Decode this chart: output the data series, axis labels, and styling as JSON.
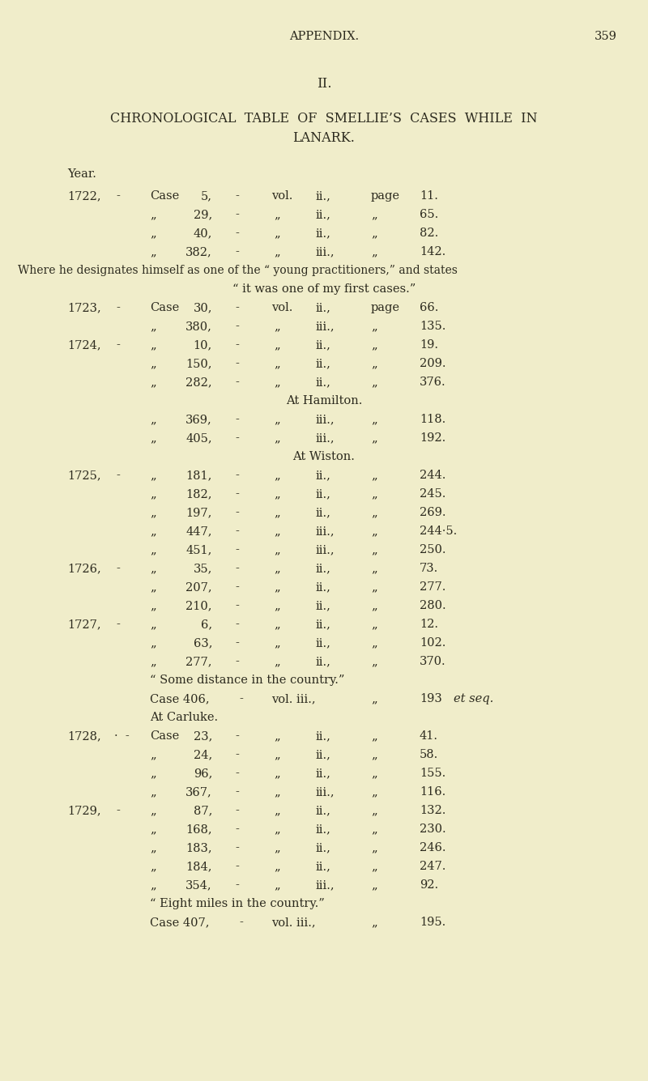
{
  "bg_color": "#f0edca",
  "text_color": "#2c2a1e",
  "lines": [
    {
      "t": "header"
    },
    {
      "t": "blank"
    },
    {
      "t": "section_ii"
    },
    {
      "t": "blank"
    },
    {
      "t": "title1"
    },
    {
      "t": "title2"
    },
    {
      "t": "blank"
    },
    {
      "t": "year_label"
    },
    {
      "t": "entry_year",
      "year": "1722,",
      "cw": "Case",
      "cn": "5,",
      "vol": "vol.",
      "vn": "ii.,",
      "pg": "page",
      "pn": "11."
    },
    {
      "t": "entry_cont",
      "cw": "„",
      "cn": "29,",
      "vn": "ii.,",
      "pn": "65."
    },
    {
      "t": "entry_cont",
      "cw": "„",
      "cn": "40,",
      "vn": "ii.,",
      "pn": "82."
    },
    {
      "t": "entry_cont",
      "cw": "„",
      "cn": "382,",
      "vn": "iii.,",
      "pn": "142."
    },
    {
      "t": "note_full",
      "text": "Where he designates himself as one of the “ young practitioners,” and states"
    },
    {
      "t": "note_center",
      "text": "“ it was one of my first cases.”"
    },
    {
      "t": "entry_year",
      "year": "1723,",
      "cw": "Case",
      "cn": "30,",
      "vol": "vol.",
      "vn": "ii.,",
      "pg": "page",
      "pn": "66."
    },
    {
      "t": "entry_cont",
      "cw": "„",
      "cn": "380,",
      "vn": "iii.,",
      "pn": "135."
    },
    {
      "t": "entry_year",
      "year": "1724,",
      "cw": "„",
      "cn": "10,",
      "vn": "ii.,",
      "pn": "19."
    },
    {
      "t": "entry_cont",
      "cw": "„",
      "cn": "150,",
      "vn": "ii.,",
      "pn": "209."
    },
    {
      "t": "entry_cont",
      "cw": "„",
      "cn": "282,",
      "vn": "ii.,",
      "pn": "376."
    },
    {
      "t": "note_center",
      "text": "At Hamilton."
    },
    {
      "t": "entry_cont",
      "cw": "„",
      "cn": "369,",
      "vn": "iii.,",
      "pn": "118."
    },
    {
      "t": "entry_cont",
      "cw": "„",
      "cn": "405,",
      "vn": "iii.,",
      "pn": "192."
    },
    {
      "t": "note_center",
      "text": "At Wiston."
    },
    {
      "t": "entry_year",
      "year": "1725,",
      "cw": "„",
      "cn": "181,",
      "vn": "ii.,",
      "pn": "244."
    },
    {
      "t": "entry_cont",
      "cw": "„",
      "cn": "182,",
      "vn": "ii.,",
      "pn": "245."
    },
    {
      "t": "entry_cont",
      "cw": "„",
      "cn": "197,",
      "vn": "ii.,",
      "pn": "269."
    },
    {
      "t": "entry_cont",
      "cw": "„",
      "cn": "447,",
      "vn": "iii.,",
      "pn": "244·5."
    },
    {
      "t": "entry_cont",
      "cw": "„",
      "cn": "451,",
      "vn": "iii.,",
      "pn": "250."
    },
    {
      "t": "entry_year",
      "year": "1726,",
      "cw": "„",
      "cn": "35,",
      "vn": "ii.,",
      "pn": "73."
    },
    {
      "t": "entry_cont",
      "cw": "„",
      "cn": "207,",
      "vn": "ii.,",
      "pn": "277."
    },
    {
      "t": "entry_cont",
      "cw": "„",
      "cn": "210,",
      "vn": "ii.,",
      "pn": "280."
    },
    {
      "t": "entry_year",
      "year": "1727,",
      "cw": "„",
      "cn": "6,",
      "vn": "ii.,",
      "pn": "12."
    },
    {
      "t": "entry_cont",
      "cw": "„",
      "cn": "63,",
      "vn": "ii.,",
      "pn": "102."
    },
    {
      "t": "entry_cont",
      "cw": "„",
      "cn": "277,",
      "vn": "ii.,",
      "pn": "370."
    },
    {
      "t": "note_ind2",
      "text": "“ Some distance in the country.”"
    },
    {
      "t": "entry_case406"
    },
    {
      "t": "note_ind2",
      "text": "At Carluke."
    },
    {
      "t": "entry_year2",
      "year": "1728,",
      "cw": "Case",
      "cn": "23,",
      "vn": "ii.,",
      "pn": "41."
    },
    {
      "t": "entry_cont",
      "cw": "„",
      "cn": "24,",
      "vn": "ii.,",
      "pn": "58."
    },
    {
      "t": "entry_cont",
      "cw": "„",
      "cn": "96,",
      "vn": "ii.,",
      "pn": "155."
    },
    {
      "t": "entry_cont",
      "cw": "„",
      "cn": "367,",
      "vn": "iii.,",
      "pn": "116."
    },
    {
      "t": "entry_year",
      "year": "1729,",
      "cw": "„",
      "cn": "87,",
      "vn": "ii.,",
      "pn": "132."
    },
    {
      "t": "entry_cont",
      "cw": "„",
      "cn": "168,",
      "vn": "ii.,",
      "pn": "230."
    },
    {
      "t": "entry_cont",
      "cw": "„",
      "cn": "183,",
      "vn": "ii.,",
      "pn": "246."
    },
    {
      "t": "entry_cont",
      "cw": "„",
      "cn": "184,",
      "vn": "ii.,",
      "pn": "247."
    },
    {
      "t": "entry_cont",
      "cw": "„",
      "cn": "354,",
      "vn": "iii.,",
      "pn": "92."
    },
    {
      "t": "note_ind2",
      "text": "“ Eight miles in the country.”"
    },
    {
      "t": "entry_case407"
    }
  ]
}
